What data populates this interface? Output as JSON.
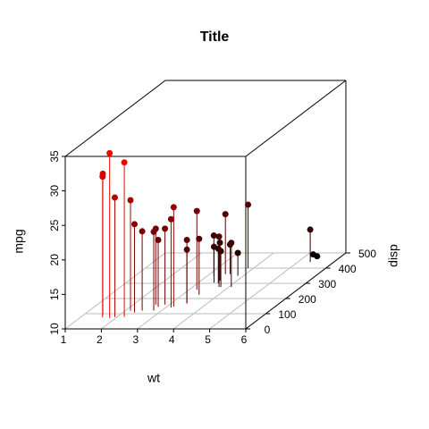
{
  "chart_data": {
    "type": "scatter3d",
    "title": "Title",
    "xlabel": "wt",
    "ylabel": "disp",
    "zlabel": "mpg",
    "x": [
      2.62,
      2.875,
      2.32,
      3.215,
      3.44,
      3.46,
      3.57,
      3.19,
      3.15,
      3.44,
      3.44,
      4.07,
      3.73,
      3.78,
      5.25,
      5.424,
      5.345,
      2.2,
      1.615,
      1.835,
      2.465,
      3.52,
      3.435,
      3.84,
      3.845,
      1.935,
      2.14,
      1.513,
      3.17,
      2.77,
      3.57,
      2.78
    ],
    "y": [
      160,
      160,
      108,
      258,
      360,
      225,
      360,
      146.7,
      140.8,
      167.6,
      167.6,
      275.8,
      275.8,
      275.8,
      472,
      460,
      440,
      78.7,
      75.7,
      71.1,
      120.1,
      318,
      304,
      350,
      400,
      79,
      120.3,
      95.1,
      351,
      145,
      301,
      121
    ],
    "z": [
      21,
      21,
      22.8,
      21.4,
      18.7,
      18.1,
      14.3,
      24.4,
      22.8,
      19.2,
      17.8,
      16.4,
      17.3,
      15.2,
      10.4,
      10.4,
      14.7,
      32.4,
      30.4,
      33.9,
      21.5,
      15.5,
      15.2,
      13.3,
      19.2,
      27.3,
      26,
      30.4,
      15.8,
      19.7,
      15,
      21.4
    ],
    "xlim": [
      1,
      6
    ],
    "xticks": [
      1,
      2,
      3,
      4,
      5,
      6
    ],
    "ylim": [
      0,
      500
    ],
    "yticks": [
      0,
      100,
      200,
      300,
      400,
      500
    ],
    "zlim": [
      10,
      35
    ],
    "zticks": [
      10,
      15,
      20,
      25,
      30,
      35
    ],
    "color_low": "#000000",
    "color_high": "#ff0000",
    "stem_type": "h",
    "grid": true
  }
}
